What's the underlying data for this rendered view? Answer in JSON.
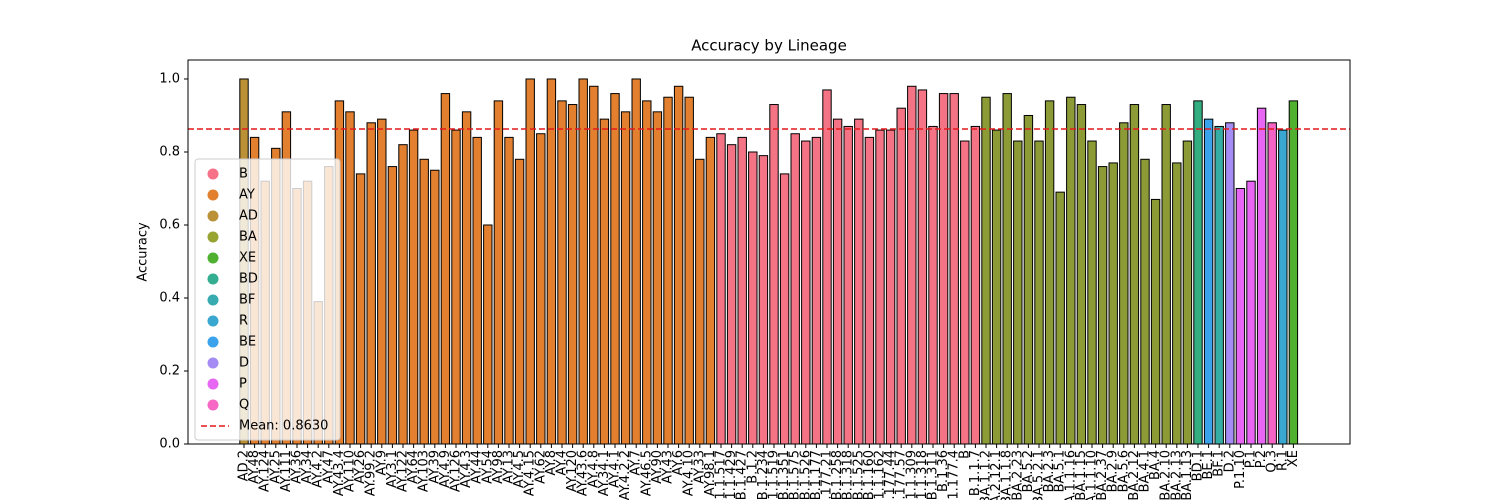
{
  "chart_data": {
    "type": "bar",
    "title": "Accuracy by Lineage",
    "ylabel": "Accuracy",
    "categories": [
      "AD.2",
      "AY.48",
      "AY.124",
      "AY.25",
      "AY.111",
      "AY.36",
      "AY.34",
      "AY.4.2",
      "AY.47",
      "AY.43.4",
      "AY.110",
      "AY.26",
      "AY.99.2",
      "AY.9",
      "AY.3.1",
      "AY.122",
      "AY.64",
      "AY.103",
      "AY.39",
      "AY.4.9",
      "AY.126",
      "AY.4.3",
      "AY.44",
      "AY.54",
      "AY.98",
      "AY.13",
      "AY.4.5",
      "AY.4.15",
      "AY.62",
      "AY.8",
      "AY.4",
      "AY.120",
      "AY.43.6",
      "AY.4.8",
      "AY.34.1",
      "AY.4.1",
      "AY.4.2.2",
      "AY.7",
      "AY.46.5",
      "AY.90",
      "AY.43",
      "AY.6",
      "AY.4.10",
      "AY.33",
      "AY.98.1",
      "B.1.1.517",
      "B.1.1.429",
      "B.1.427",
      "B.1.2",
      "B.1.234",
      "B.1.1.519",
      "B.1.351",
      "B.1.575",
      "B.1.526",
      "B.1.177",
      "B.1.177.21",
      "B.1.258",
      "B.1.318",
      "B.1.525",
      "B.1.160",
      "B.1.1.162",
      "B.1.177.44",
      "B.1.177.57",
      "B.1.1.309",
      "B.1.1.318",
      "B.1.311",
      "B.1.36",
      "B.1.177.4",
      "B",
      "B.1.1.7",
      "BA.1.1.2",
      "BA.2.12.1",
      "BA.1.1.8",
      "BA.2.23",
      "BA.5.2",
      "BA.5.2.1",
      "BA.2.3",
      "BA.5.1",
      "BA.1.1.16",
      "BA.1.15",
      "BA.1.1.10",
      "BA.2.37",
      "BA.2.9",
      "BA.5.6",
      "BA.2.12",
      "BA.4.1",
      "BA.4",
      "BA.2.10",
      "BA.2.13",
      "BA.1.13",
      "BD.1",
      "BE.1",
      "BF.1",
      "D.2",
      "P.1.10",
      "P.1",
      "P.2",
      "Q.3",
      "R.1",
      "XE"
    ],
    "values": [
      1.0,
      0.84,
      0.72,
      0.81,
      0.91,
      0.7,
      0.72,
      0.39,
      0.76,
      0.94,
      0.91,
      0.74,
      0.88,
      0.89,
      0.76,
      0.82,
      0.86,
      0.78,
      0.75,
      0.96,
      0.86,
      0.91,
      0.84,
      0.6,
      0.94,
      0.84,
      0.78,
      1.0,
      0.85,
      1.0,
      0.94,
      0.93,
      1.0,
      0.98,
      0.89,
      0.96,
      0.91,
      1.0,
      0.94,
      0.91,
      0.95,
      0.98,
      0.95,
      0.78,
      0.84,
      0.85,
      0.82,
      0.84,
      0.8,
      0.79,
      0.93,
      0.74,
      0.85,
      0.83,
      0.84,
      0.97,
      0.89,
      0.87,
      0.89,
      0.84,
      0.86,
      0.86,
      0.92,
      0.98,
      0.97,
      0.87,
      0.96,
      0.96,
      0.83,
      0.87,
      0.95,
      0.86,
      0.96,
      0.83,
      0.9,
      0.83,
      0.94,
      0.69,
      0.95,
      0.93,
      0.83,
      0.76,
      0.77,
      0.88,
      0.93,
      0.78,
      0.67,
      0.93,
      0.77,
      0.83,
      0.94,
      0.89,
      0.87,
      0.88,
      0.7,
      0.72,
      0.92,
      0.88,
      0.86,
      0.94
    ],
    "colors": [
      "#bb9137",
      "#e3802f",
      "#e3802f",
      "#e3802f",
      "#e3802f",
      "#e3802f",
      "#e3802f",
      "#e3802f",
      "#e3802f",
      "#e3802f",
      "#e3802f",
      "#e3802f",
      "#e3802f",
      "#e3802f",
      "#e3802f",
      "#e3802f",
      "#e3802f",
      "#e3802f",
      "#e3802f",
      "#e3802f",
      "#e3802f",
      "#e3802f",
      "#e3802f",
      "#e3802f",
      "#e3802f",
      "#e3802f",
      "#e3802f",
      "#e3802f",
      "#e3802f",
      "#e3802f",
      "#e3802f",
      "#e3802f",
      "#e3802f",
      "#e3802f",
      "#e3802f",
      "#e3802f",
      "#e3802f",
      "#e3802f",
      "#e3802f",
      "#e3802f",
      "#e3802f",
      "#e3802f",
      "#e3802f",
      "#e3802f",
      "#e3802f",
      "#f47486",
      "#f47486",
      "#f47486",
      "#f47486",
      "#f47486",
      "#f47486",
      "#f47486",
      "#f47486",
      "#f47486",
      "#f47486",
      "#f47486",
      "#f47486",
      "#f47486",
      "#f47486",
      "#f47486",
      "#f47486",
      "#f47486",
      "#f47486",
      "#f47486",
      "#f47486",
      "#f47486",
      "#f47486",
      "#f47486",
      "#f47486",
      "#f47486",
      "#8c9b36",
      "#8c9b36",
      "#8c9b36",
      "#8c9b36",
      "#8c9b36",
      "#8c9b36",
      "#8c9b36",
      "#8c9b36",
      "#8c9b36",
      "#8c9b36",
      "#8c9b36",
      "#8c9b36",
      "#8c9b36",
      "#8c9b36",
      "#8c9b36",
      "#8c9b36",
      "#8c9b36",
      "#8c9b36",
      "#8c9b36",
      "#8c9b36",
      "#33ae80",
      "#3ba3ec",
      "#36ada4",
      "#a48cf4",
      "#e866f4",
      "#e866f4",
      "#e866f4",
      "#f564c4",
      "#39a7d0",
      "#50b131"
    ],
    "legend": [
      {
        "name": "B",
        "color": "#f77189"
      },
      {
        "name": "AY",
        "color": "#e3802f"
      },
      {
        "name": "AD",
        "color": "#bb9137"
      },
      {
        "name": "BA",
        "color": "#97a431"
      },
      {
        "name": "XE",
        "color": "#50b131"
      },
      {
        "name": "BD",
        "color": "#34ae91"
      },
      {
        "name": "BF",
        "color": "#37abb0"
      },
      {
        "name": "R",
        "color": "#39a7d0"
      },
      {
        "name": "BE",
        "color": "#3ba3ec"
      },
      {
        "name": "D",
        "color": "#a48cf4"
      },
      {
        "name": "P",
        "color": "#e866f4"
      },
      {
        "name": "Q",
        "color": "#f668c4"
      }
    ],
    "mean": {
      "value": 0.863,
      "label": "Mean: 0.8630",
      "color": "#e41a1c"
    },
    "legend_loc": "lower left",
    "ylim": [
      0,
      1.052
    ],
    "yticks": [
      {
        "value": 0,
        "label": "0.0"
      },
      0.2,
      0.4,
      0.6,
      0.8,
      {
        "value": 1,
        "label": "1.0"
      }
    ]
  }
}
